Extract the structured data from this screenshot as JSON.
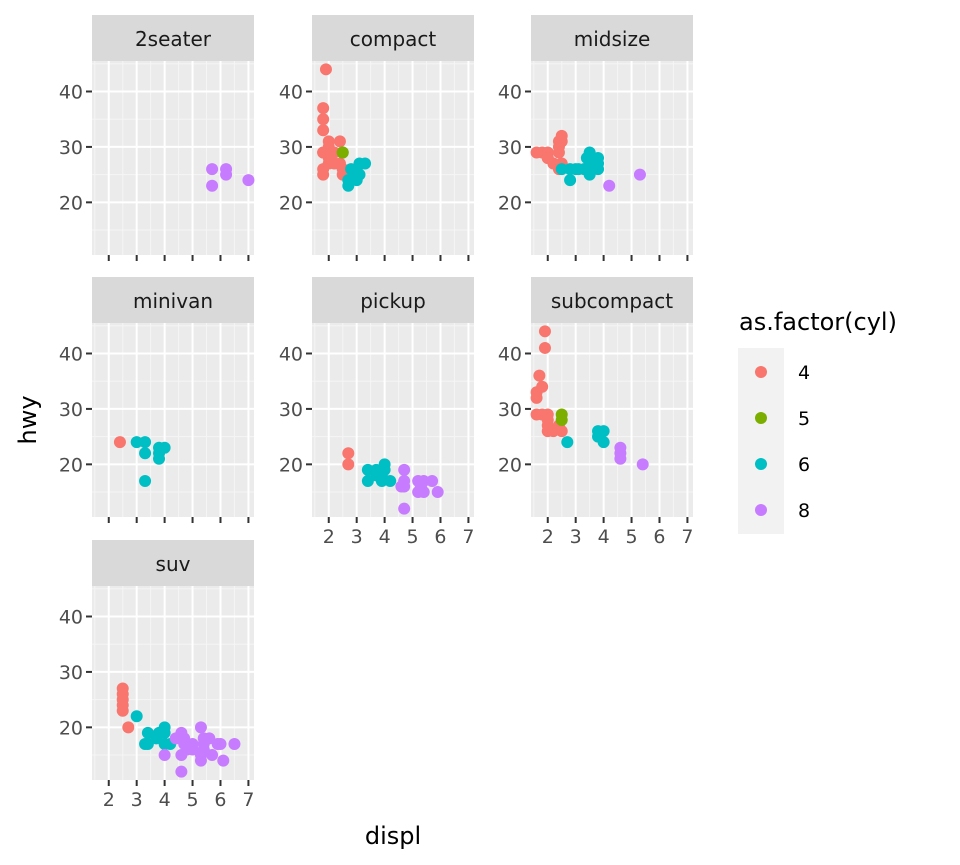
{
  "chart_data": {
    "type": "scatter",
    "facet_by": "class",
    "xlabel": "displ",
    "ylabel": "hwy",
    "xlim": [
      1.4,
      7.2
    ],
    "ylim": [
      10.5,
      45.5
    ],
    "x_ticks": [
      2,
      3,
      4,
      5,
      6,
      7
    ],
    "y_ticks": [
      20,
      30,
      40
    ],
    "grid": true,
    "legend": {
      "title": "as.factor(cyl)",
      "placement": "right",
      "entries": [
        {
          "label": "4",
          "color": "#F8766D"
        },
        {
          "label": "5",
          "color": "#7CAE00"
        },
        {
          "label": "6",
          "color": "#00BFC4"
        },
        {
          "label": "8",
          "color": "#C77CFF"
        }
      ]
    },
    "panels": [
      {
        "name": "2seater",
        "points": [
          {
            "x": 5.7,
            "y": 26,
            "cyl": "8"
          },
          {
            "x": 5.7,
            "y": 23,
            "cyl": "8"
          },
          {
            "x": 6.2,
            "y": 26,
            "cyl": "8"
          },
          {
            "x": 6.2,
            "y": 25,
            "cyl": "8"
          },
          {
            "x": 7.0,
            "y": 24,
            "cyl": "8"
          }
        ]
      },
      {
        "name": "compact",
        "points": [
          {
            "x": 1.8,
            "y": 29,
            "cyl": "4"
          },
          {
            "x": 1.8,
            "y": 29,
            "cyl": "4"
          },
          {
            "x": 2.0,
            "y": 31,
            "cyl": "4"
          },
          {
            "x": 2.0,
            "y": 30,
            "cyl": "4"
          },
          {
            "x": 1.8,
            "y": 26,
            "cyl": "4"
          },
          {
            "x": 1.8,
            "y": 25,
            "cyl": "4"
          },
          {
            "x": 2.0,
            "y": 28,
            "cyl": "4"
          },
          {
            "x": 2.0,
            "y": 27,
            "cyl": "4"
          },
          {
            "x": 1.9,
            "y": 44,
            "cyl": "4"
          },
          {
            "x": 1.8,
            "y": 37,
            "cyl": "4"
          },
          {
            "x": 1.8,
            "y": 35,
            "cyl": "4"
          },
          {
            "x": 1.8,
            "y": 33,
            "cyl": "4"
          },
          {
            "x": 2.0,
            "y": 29,
            "cyl": "4"
          },
          {
            "x": 2.2,
            "y": 27,
            "cyl": "4"
          },
          {
            "x": 2.4,
            "y": 31,
            "cyl": "4"
          },
          {
            "x": 2.5,
            "y": 26,
            "cyl": "4"
          },
          {
            "x": 2.5,
            "y": 25,
            "cyl": "4"
          },
          {
            "x": 2.2,
            "y": 29,
            "cyl": "4"
          },
          {
            "x": 2.4,
            "y": 27,
            "cyl": "4"
          },
          {
            "x": 2.5,
            "y": 29,
            "cyl": "5"
          },
          {
            "x": 2.5,
            "y": 29,
            "cyl": "5"
          },
          {
            "x": 2.8,
            "y": 26,
            "cyl": "6"
          },
          {
            "x": 2.8,
            "y": 24,
            "cyl": "6"
          },
          {
            "x": 3.1,
            "y": 25,
            "cyl": "6"
          },
          {
            "x": 3.3,
            "y": 27,
            "cyl": "6"
          },
          {
            "x": 3.1,
            "y": 27,
            "cyl": "6"
          },
          {
            "x": 2.7,
            "y": 24,
            "cyl": "6"
          },
          {
            "x": 2.7,
            "y": 23,
            "cyl": "6"
          },
          {
            "x": 3.0,
            "y": 26,
            "cyl": "6"
          },
          {
            "x": 3.0,
            "y": 24,
            "cyl": "6"
          }
        ]
      },
      {
        "name": "midsize",
        "points": [
          {
            "x": 1.8,
            "y": 29,
            "cyl": "4"
          },
          {
            "x": 2.0,
            "y": 29,
            "cyl": "4"
          },
          {
            "x": 2.0,
            "y": 28,
            "cyl": "4"
          },
          {
            "x": 2.2,
            "y": 27,
            "cyl": "4"
          },
          {
            "x": 2.4,
            "y": 31,
            "cyl": "4"
          },
          {
            "x": 2.4,
            "y": 30,
            "cyl": "4"
          },
          {
            "x": 2.5,
            "y": 32,
            "cyl": "4"
          },
          {
            "x": 2.5,
            "y": 31,
            "cyl": "4"
          },
          {
            "x": 2.4,
            "y": 29,
            "cyl": "4"
          },
          {
            "x": 2.4,
            "y": 26,
            "cyl": "4"
          },
          {
            "x": 2.5,
            "y": 27,
            "cyl": "4"
          },
          {
            "x": 1.6,
            "y": 29,
            "cyl": "4"
          },
          {
            "x": 2.0,
            "y": 28,
            "cyl": "4"
          },
          {
            "x": 2.5,
            "y": 26,
            "cyl": "6"
          },
          {
            "x": 2.8,
            "y": 26,
            "cyl": "6"
          },
          {
            "x": 3.0,
            "y": 26,
            "cyl": "6"
          },
          {
            "x": 2.8,
            "y": 24,
            "cyl": "6"
          },
          {
            "x": 3.1,
            "y": 26,
            "cyl": "6"
          },
          {
            "x": 3.3,
            "y": 26,
            "cyl": "6"
          },
          {
            "x": 3.4,
            "y": 28,
            "cyl": "6"
          },
          {
            "x": 3.5,
            "y": 29,
            "cyl": "6"
          },
          {
            "x": 3.5,
            "y": 25,
            "cyl": "6"
          },
          {
            "x": 3.5,
            "y": 27,
            "cyl": "6"
          },
          {
            "x": 3.8,
            "y": 26,
            "cyl": "6"
          },
          {
            "x": 3.8,
            "y": 27,
            "cyl": "6"
          },
          {
            "x": 3.8,
            "y": 28,
            "cyl": "6"
          },
          {
            "x": 3.6,
            "y": 26,
            "cyl": "6"
          },
          {
            "x": 4.2,
            "y": 23,
            "cyl": "8"
          },
          {
            "x": 5.3,
            "y": 25,
            "cyl": "8"
          }
        ]
      },
      {
        "name": "minivan",
        "points": [
          {
            "x": 2.4,
            "y": 24,
            "cyl": "4"
          },
          {
            "x": 3.0,
            "y": 24,
            "cyl": "6"
          },
          {
            "x": 3.3,
            "y": 22,
            "cyl": "6"
          },
          {
            "x": 3.3,
            "y": 24,
            "cyl": "6"
          },
          {
            "x": 3.3,
            "y": 17,
            "cyl": "6"
          },
          {
            "x": 3.8,
            "y": 22,
            "cyl": "6"
          },
          {
            "x": 3.8,
            "y": 21,
            "cyl": "6"
          },
          {
            "x": 3.8,
            "y": 23,
            "cyl": "6"
          },
          {
            "x": 4.0,
            "y": 23,
            "cyl": "6"
          }
        ]
      },
      {
        "name": "pickup",
        "points": [
          {
            "x": 2.7,
            "y": 20,
            "cyl": "4"
          },
          {
            "x": 2.7,
            "y": 22,
            "cyl": "4"
          },
          {
            "x": 3.4,
            "y": 17,
            "cyl": "6"
          },
          {
            "x": 3.4,
            "y": 19,
            "cyl": "6"
          },
          {
            "x": 3.7,
            "y": 18,
            "cyl": "6"
          },
          {
            "x": 3.7,
            "y": 19,
            "cyl": "6"
          },
          {
            "x": 3.9,
            "y": 17,
            "cyl": "6"
          },
          {
            "x": 3.9,
            "y": 18,
            "cyl": "6"
          },
          {
            "x": 4.0,
            "y": 20,
            "cyl": "6"
          },
          {
            "x": 4.0,
            "y": 19,
            "cyl": "6"
          },
          {
            "x": 4.2,
            "y": 17,
            "cyl": "6"
          },
          {
            "x": 4.7,
            "y": 12,
            "cyl": "8"
          },
          {
            "x": 4.7,
            "y": 16,
            "cyl": "8"
          },
          {
            "x": 4.7,
            "y": 17,
            "cyl": "8"
          },
          {
            "x": 4.7,
            "y": 19,
            "cyl": "8"
          },
          {
            "x": 5.2,
            "y": 15,
            "cyl": "8"
          },
          {
            "x": 5.2,
            "y": 17,
            "cyl": "8"
          },
          {
            "x": 5.7,
            "y": 17,
            "cyl": "8"
          },
          {
            "x": 5.9,
            "y": 15,
            "cyl": "8"
          },
          {
            "x": 4.6,
            "y": 16,
            "cyl": "8"
          },
          {
            "x": 5.4,
            "y": 15,
            "cyl": "8"
          },
          {
            "x": 5.4,
            "y": 17,
            "cyl": "8"
          },
          {
            "x": 5.3,
            "y": 16,
            "cyl": "8"
          }
        ]
      },
      {
        "name": "subcompact",
        "points": [
          {
            "x": 1.6,
            "y": 33,
            "cyl": "4"
          },
          {
            "x": 1.6,
            "y": 32,
            "cyl": "4"
          },
          {
            "x": 1.6,
            "y": 29,
            "cyl": "4"
          },
          {
            "x": 1.7,
            "y": 36,
            "cyl": "4"
          },
          {
            "x": 1.8,
            "y": 34,
            "cyl": "4"
          },
          {
            "x": 1.8,
            "y": 29,
            "cyl": "4"
          },
          {
            "x": 1.9,
            "y": 44,
            "cyl": "4"
          },
          {
            "x": 1.9,
            "y": 41,
            "cyl": "4"
          },
          {
            "x": 2.0,
            "y": 29,
            "cyl": "4"
          },
          {
            "x": 2.0,
            "y": 28,
            "cyl": "4"
          },
          {
            "x": 2.0,
            "y": 27,
            "cyl": "4"
          },
          {
            "x": 2.0,
            "y": 26,
            "cyl": "4"
          },
          {
            "x": 2.2,
            "y": 26,
            "cyl": "4"
          },
          {
            "x": 2.4,
            "y": 27,
            "cyl": "4"
          },
          {
            "x": 2.5,
            "y": 26,
            "cyl": "4"
          },
          {
            "x": 2.5,
            "y": 28,
            "cyl": "5"
          },
          {
            "x": 2.5,
            "y": 29,
            "cyl": "5"
          },
          {
            "x": 2.7,
            "y": 24,
            "cyl": "6"
          },
          {
            "x": 3.8,
            "y": 26,
            "cyl": "6"
          },
          {
            "x": 3.8,
            "y": 25,
            "cyl": "6"
          },
          {
            "x": 4.0,
            "y": 26,
            "cyl": "6"
          },
          {
            "x": 4.0,
            "y": 24,
            "cyl": "6"
          },
          {
            "x": 4.6,
            "y": 23,
            "cyl": "8"
          },
          {
            "x": 4.6,
            "y": 22,
            "cyl": "8"
          },
          {
            "x": 4.6,
            "y": 21,
            "cyl": "8"
          },
          {
            "x": 5.4,
            "y": 20,
            "cyl": "8"
          }
        ]
      },
      {
        "name": "suv",
        "points": [
          {
            "x": 2.5,
            "y": 27,
            "cyl": "4"
          },
          {
            "x": 2.5,
            "y": 26,
            "cyl": "4"
          },
          {
            "x": 2.5,
            "y": 25,
            "cyl": "4"
          },
          {
            "x": 2.5,
            "y": 24,
            "cyl": "4"
          },
          {
            "x": 2.5,
            "y": 23,
            "cyl": "4"
          },
          {
            "x": 2.7,
            "y": 20,
            "cyl": "4"
          },
          {
            "x": 3.0,
            "y": 22,
            "cyl": "6"
          },
          {
            "x": 3.3,
            "y": 17,
            "cyl": "6"
          },
          {
            "x": 3.4,
            "y": 17,
            "cyl": "6"
          },
          {
            "x": 3.4,
            "y": 19,
            "cyl": "6"
          },
          {
            "x": 3.7,
            "y": 18,
            "cyl": "6"
          },
          {
            "x": 3.8,
            "y": 19,
            "cyl": "6"
          },
          {
            "x": 4.0,
            "y": 17,
            "cyl": "6"
          },
          {
            "x": 4.0,
            "y": 19,
            "cyl": "6"
          },
          {
            "x": 4.0,
            "y": 20,
            "cyl": "6"
          },
          {
            "x": 4.2,
            "y": 17,
            "cyl": "6"
          },
          {
            "x": 4.0,
            "y": 15,
            "cyl": "8"
          },
          {
            "x": 4.4,
            "y": 18,
            "cyl": "8"
          },
          {
            "x": 4.6,
            "y": 12,
            "cyl": "8"
          },
          {
            "x": 4.6,
            "y": 15,
            "cyl": "8"
          },
          {
            "x": 4.6,
            "y": 19,
            "cyl": "8"
          },
          {
            "x": 4.7,
            "y": 17,
            "cyl": "8"
          },
          {
            "x": 4.7,
            "y": 18,
            "cyl": "8"
          },
          {
            "x": 5.0,
            "y": 17,
            "cyl": "8"
          },
          {
            "x": 5.3,
            "y": 14,
            "cyl": "8"
          },
          {
            "x": 5.3,
            "y": 15,
            "cyl": "8"
          },
          {
            "x": 5.3,
            "y": 20,
            "cyl": "8"
          },
          {
            "x": 5.4,
            "y": 16,
            "cyl": "8"
          },
          {
            "x": 5.4,
            "y": 17,
            "cyl": "8"
          },
          {
            "x": 5.4,
            "y": 18,
            "cyl": "8"
          },
          {
            "x": 5.6,
            "y": 18,
            "cyl": "8"
          },
          {
            "x": 5.7,
            "y": 15,
            "cyl": "8"
          },
          {
            "x": 5.9,
            "y": 17,
            "cyl": "8"
          },
          {
            "x": 6.0,
            "y": 17,
            "cyl": "8"
          },
          {
            "x": 6.1,
            "y": 14,
            "cyl": "8"
          },
          {
            "x": 6.5,
            "y": 17,
            "cyl": "8"
          },
          {
            "x": 5.0,
            "y": 16,
            "cyl": "8"
          },
          {
            "x": 4.8,
            "y": 16,
            "cyl": "8"
          }
        ]
      }
    ]
  }
}
